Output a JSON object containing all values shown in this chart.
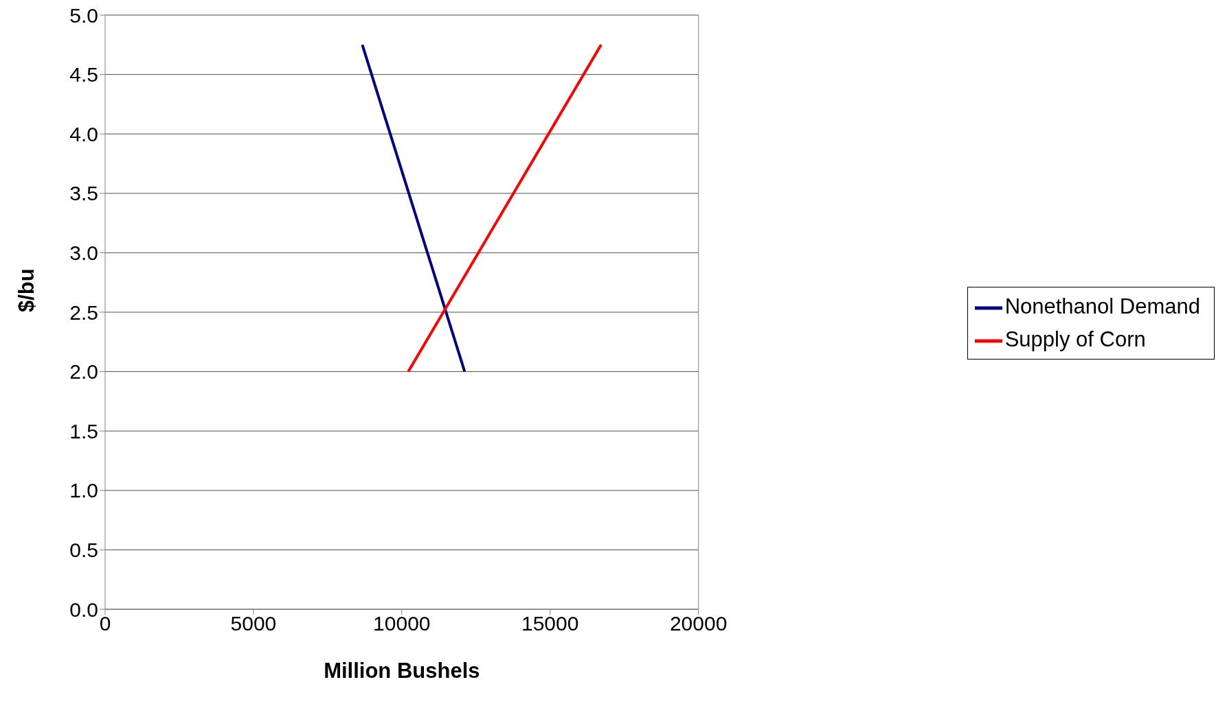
{
  "chart_data": {
    "type": "line",
    "xlabel": "Million Bushels",
    "ylabel": "$/bu",
    "xlim": [
      0,
      20000
    ],
    "xticks": [
      0,
      5000,
      10000,
      15000,
      20000
    ],
    "ylim": [
      0,
      5
    ],
    "yticks": [
      {
        "value": 0,
        "label": "0.0"
      },
      {
        "value": 0.5,
        "label": "0.5"
      },
      {
        "value": 1,
        "label": "1.0"
      },
      {
        "value": 1.5,
        "label": "1.5"
      },
      {
        "value": 2,
        "label": "2.0"
      },
      {
        "value": 2.5,
        "label": "2.5"
      },
      {
        "value": 3,
        "label": "3.0"
      },
      {
        "value": 3.5,
        "label": "3.5"
      },
      {
        "value": 4,
        "label": "4.0"
      },
      {
        "value": 4.5,
        "label": "4.5"
      },
      {
        "value": 5,
        "label": "5.0"
      }
    ],
    "grid": "y",
    "legend": "right",
    "marker": "none",
    "line_style": "solid",
    "series": [
      {
        "name": "Nonethanol Demand",
        "color": "#000080",
        "x": [
          8670,
          12120
        ],
        "values": [
          4.75,
          2.0
        ]
      },
      {
        "name": "Supply of Corn",
        "color": "#ff0000",
        "x": [
          10220,
          16720
        ],
        "values": [
          2.0,
          4.75
        ]
      }
    ]
  }
}
